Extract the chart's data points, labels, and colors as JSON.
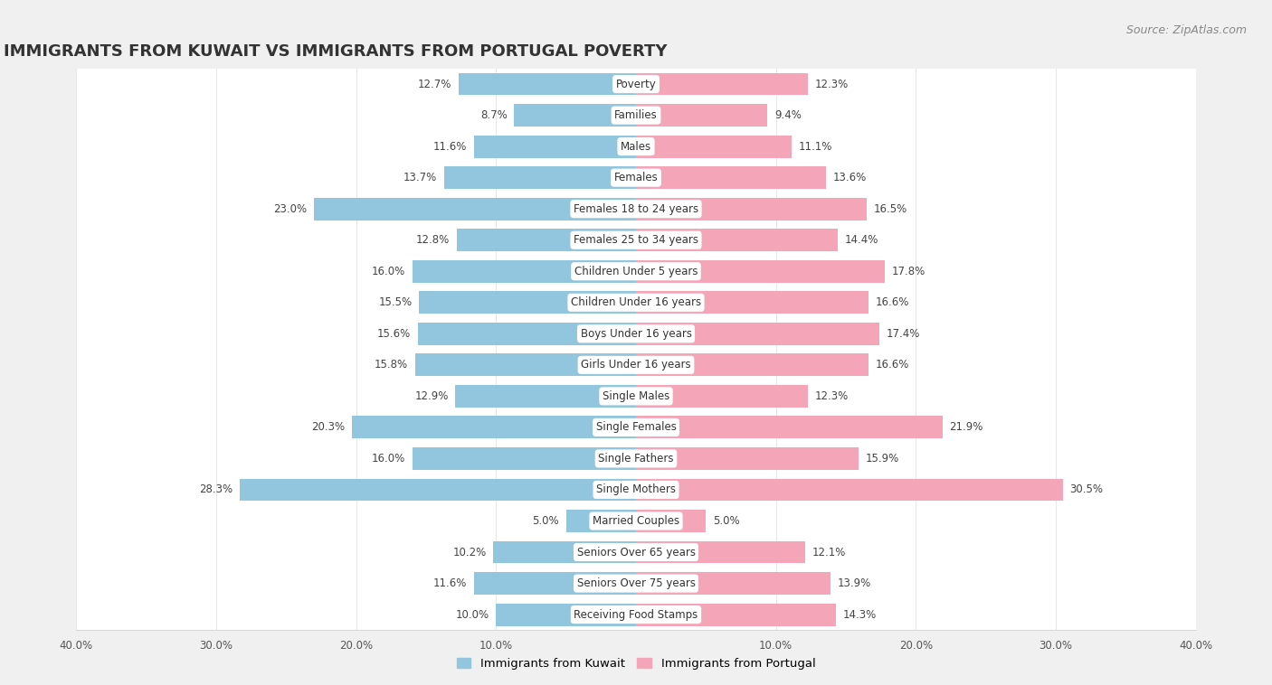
{
  "title": "IMMIGRANTS FROM KUWAIT VS IMMIGRANTS FROM PORTUGAL POVERTY",
  "source": "Source: ZipAtlas.com",
  "categories": [
    "Poverty",
    "Families",
    "Males",
    "Females",
    "Females 18 to 24 years",
    "Females 25 to 34 years",
    "Children Under 5 years",
    "Children Under 16 years",
    "Boys Under 16 years",
    "Girls Under 16 years",
    "Single Males",
    "Single Females",
    "Single Fathers",
    "Single Mothers",
    "Married Couples",
    "Seniors Over 65 years",
    "Seniors Over 75 years",
    "Receiving Food Stamps"
  ],
  "kuwait_values": [
    12.7,
    8.7,
    11.6,
    13.7,
    23.0,
    12.8,
    16.0,
    15.5,
    15.6,
    15.8,
    12.9,
    20.3,
    16.0,
    28.3,
    5.0,
    10.2,
    11.6,
    10.0
  ],
  "portugal_values": [
    12.3,
    9.4,
    11.1,
    13.6,
    16.5,
    14.4,
    17.8,
    16.6,
    17.4,
    16.6,
    12.3,
    21.9,
    15.9,
    30.5,
    5.0,
    12.1,
    13.9,
    14.3
  ],
  "kuwait_color": "#92c5de",
  "portugal_color": "#f4a6b8",
  "background_color": "#f0f0f0",
  "bar_row_color": "#ffffff",
  "gap_color": "#e8e8e8",
  "xlim": 40.0,
  "bar_height": 0.72,
  "legend_kuwait": "Immigrants from Kuwait",
  "legend_portugal": "Immigrants from Portugal",
  "title_fontsize": 13,
  "source_fontsize": 9,
  "label_fontsize": 8.5,
  "category_fontsize": 8.5
}
